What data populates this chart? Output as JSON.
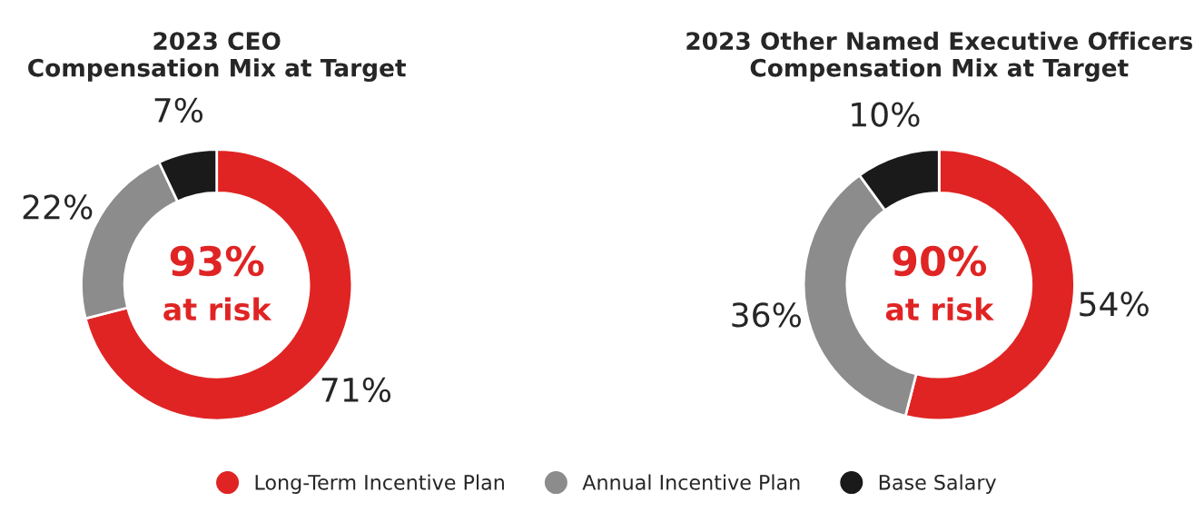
{
  "chart_data": [
    {
      "type": "donut",
      "title": "2023 CEO\nCompensation Mix at Target",
      "categories": [
        "Long-Term Incentive Plan",
        "Annual Incentive Plan",
        "Base Salary"
      ],
      "values": [
        71,
        22,
        7
      ],
      "colors": [
        "#e02424",
        "#8c8c8c",
        "#1a1a1a"
      ],
      "value_labels": [
        "71%",
        "22%",
        "7%"
      ],
      "annotations": [
        "93%",
        "at risk"
      ],
      "legend": "bottom"
    },
    {
      "type": "donut",
      "title": "2023 Other Named Executive Officers\nCompensation Mix at Target",
      "values": [
        54,
        36,
        10
      ],
      "colors": [
        "#e02424",
        "#8c8c8c",
        "#1a1a1a"
      ],
      "value_labels": [
        "54%",
        "36%",
        "10%"
      ],
      "annotations": [
        "90%",
        "at risk"
      ]
    }
  ]
}
